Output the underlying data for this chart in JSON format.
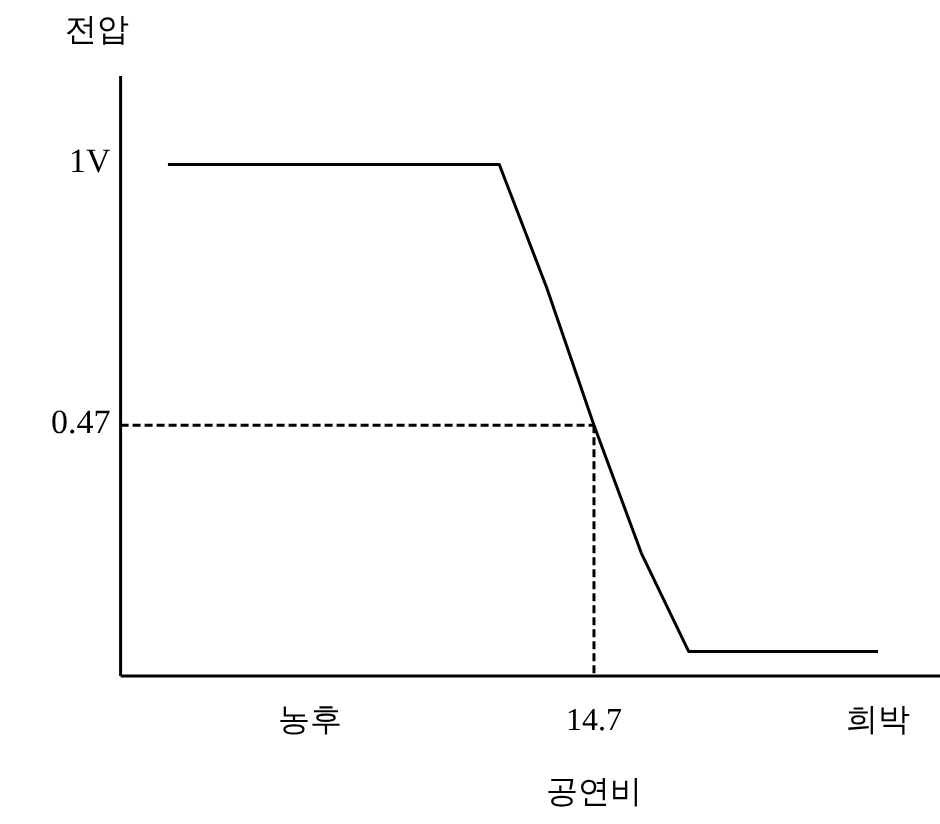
{
  "chart_data": {
    "type": "line",
    "xlabel": "공연비",
    "ylabel": "전압",
    "categories": [
      null,
      null,
      null,
      null,
      "농후",
      null,
      null,
      null,
      null,
      null,
      "14.7",
      null,
      null,
      null,
      null,
      null,
      "희박"
    ],
    "ylim": [
      -0.04,
      1.18
    ],
    "yticks": [
      {
        "value": 0.47,
        "label": "0.47"
      },
      {
        "value": 1,
        "label": "1V"
      }
    ],
    "series": [
      {
        "color": "#000000",
        "line_style": "solid",
        "values": [
          null,
          1,
          1,
          1,
          1,
          1,
          1,
          1,
          1,
          0.75,
          0.47,
          0.21,
          0.01,
          0.01,
          0.01,
          0.01,
          0.01
        ]
      },
      {
        "color": "#000000",
        "line_style": "dashed",
        "values": [
          0.47,
          0.47,
          0.47,
          0.47,
          0.47,
          0.47,
          0.47,
          0.47,
          0.47,
          0.47,
          0.47,
          null,
          null,
          null,
          null,
          null,
          null
        ]
      },
      {
        "color": "#000000",
        "line_style": "dashed",
        "x": [
          "14.7",
          "14.7"
        ],
        "values": [
          0.47,
          -0.04
        ]
      }
    ],
    "grid": false,
    "marker": "none"
  }
}
